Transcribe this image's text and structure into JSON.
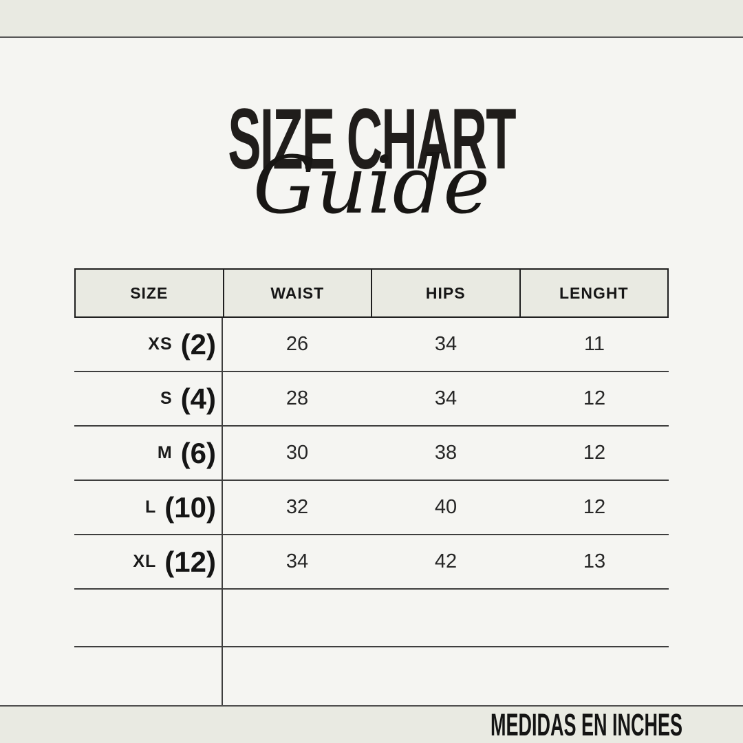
{
  "page": {
    "background_color": "#f5f5f2",
    "band_color": "#e9eae2",
    "line_color": "#3e3e3e",
    "ink_color": "#1b1b1b"
  },
  "header": {
    "title": "SIZE CHART",
    "title_script": "Guide"
  },
  "table": {
    "columns": [
      "SIZE",
      "WAIST",
      "HIPS",
      "LENGHT"
    ],
    "rows": [
      {
        "size": "XS",
        "size_number": "(2)",
        "waist": "26",
        "hips": "34",
        "length": "11"
      },
      {
        "size": "S",
        "size_number": "(4)",
        "waist": "28",
        "hips": "34",
        "length": "12"
      },
      {
        "size": "M",
        "size_number": "(6)",
        "waist": "30",
        "hips": "38",
        "length": "12"
      },
      {
        "size": "L",
        "size_number": "(10)",
        "waist": "32",
        "hips": "40",
        "length": "12"
      },
      {
        "size": "XL",
        "size_number": "(12)",
        "waist": "34",
        "hips": "42",
        "length": "13"
      }
    ],
    "empty_row_count": 2
  },
  "footer": {
    "note": "MEDIDAS EN INCHES"
  },
  "chart_data": {
    "type": "table",
    "title": "SIZE CHART Guide",
    "columns": [
      "SIZE",
      "WAIST",
      "HIPS",
      "LENGHT"
    ],
    "rows": [
      [
        "XS (2)",
        26,
        34,
        11
      ],
      [
        "S (4)",
        28,
        34,
        12
      ],
      [
        "M (6)",
        30,
        38,
        12
      ],
      [
        "L (10)",
        32,
        40,
        12
      ],
      [
        "XL (12)",
        34,
        42,
        13
      ]
    ],
    "units_note": "MEDIDAS EN INCHES",
    "empty_trailing_rows": 2
  }
}
